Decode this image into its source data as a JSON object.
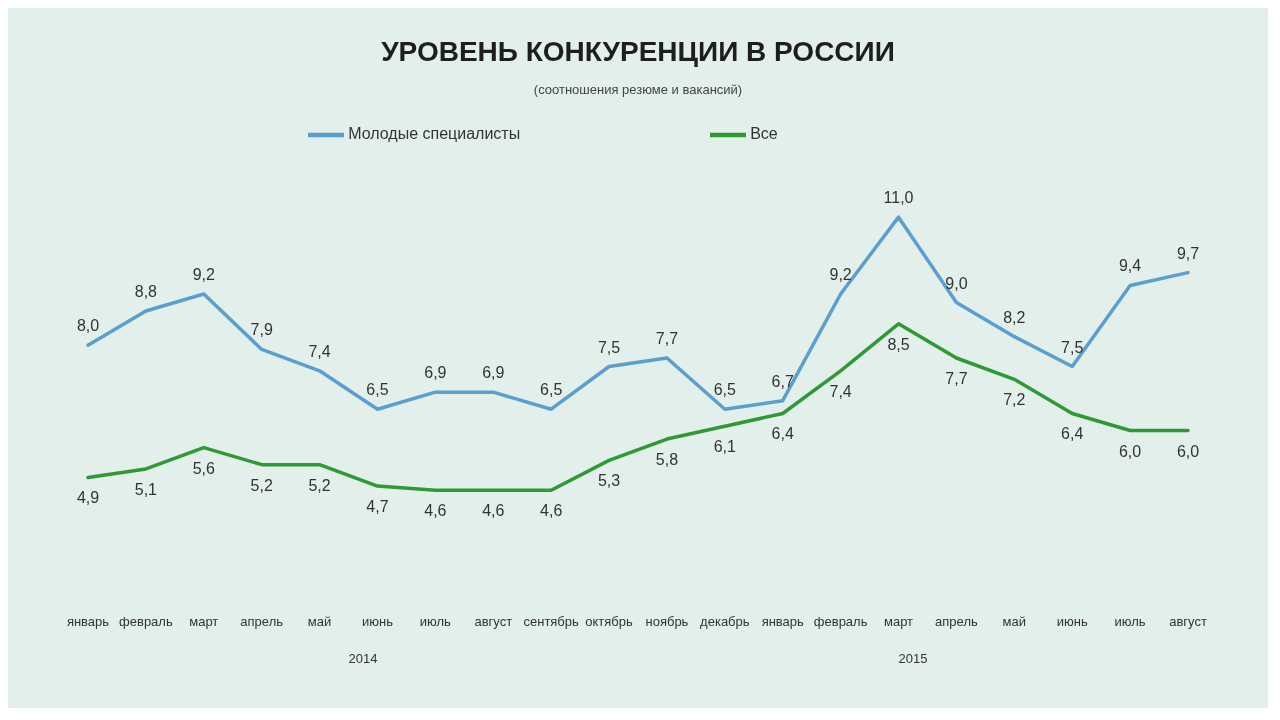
{
  "chart_data": {
    "type": "line",
    "title": "УРОВЕНЬ КОНКУРЕНЦИИ В РОССИИ",
    "subtitle": "(соотношения резюме и вакансий)",
    "categories": [
      "январь",
      "февраль",
      "март",
      "апрель",
      "май",
      "июнь",
      "июль",
      "август",
      "сентябрь",
      "октябрь",
      "ноябрь",
      "декабрь",
      "январь",
      "февраль",
      "март",
      "апрель",
      "май",
      "июнь",
      "июль",
      "август"
    ],
    "series": [
      {
        "name": "Молодые специалисты",
        "color": "#5b9fd0",
        "values": [
          8.0,
          8.8,
          9.2,
          7.9,
          7.4,
          6.5,
          6.9,
          6.9,
          6.5,
          7.5,
          7.7,
          6.5,
          6.7,
          9.2,
          11.0,
          9.0,
          8.2,
          7.5,
          9.4,
          9.7
        ],
        "value_labels": [
          "8,0",
          "8,8",
          "9,2",
          "7,9",
          "7,4",
          "6,5",
          "6,9",
          "6,9",
          "6,5",
          "7,5",
          "7,7",
          "6,5",
          "6,7",
          "9,2",
          "11,0",
          "9,0",
          "8,2",
          "7,5",
          "9,4",
          "9,7"
        ]
      },
      {
        "name": "Все",
        "color": "#2f9a35",
        "values": [
          4.9,
          5.1,
          5.6,
          5.2,
          5.2,
          4.7,
          4.6,
          4.6,
          4.6,
          5.3,
          5.8,
          6.1,
          6.4,
          7.4,
          8.5,
          7.7,
          7.2,
          6.4,
          6.0,
          6.0
        ],
        "value_labels": [
          "4,9",
          "5,1",
          "5,6",
          "5,2",
          "5,2",
          "4,7",
          "4,6",
          "4,6",
          "4,6",
          "5,3",
          "5,8",
          "6,1",
          "6,4",
          "7,4",
          "8,5",
          "7,7",
          "7,2",
          "6,4",
          "6,0",
          "6,0"
        ]
      }
    ],
    "legend": "top",
    "marker": "none",
    "line_style": "solid",
    "annotations": [
      "2014",
      "2015"
    ]
  }
}
